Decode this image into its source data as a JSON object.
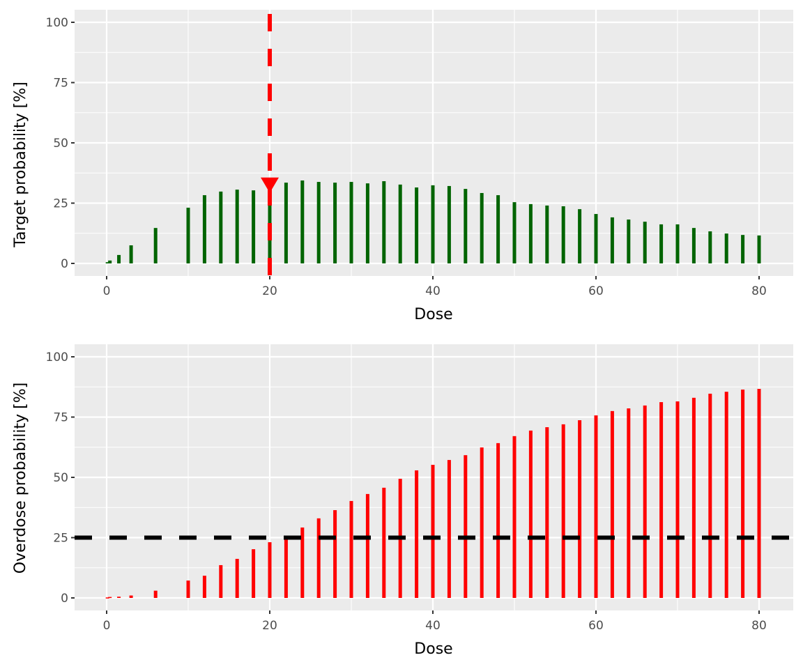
{
  "chart_data": [
    {
      "type": "bar",
      "panel": "top",
      "title": "",
      "xlabel": "Dose",
      "ylabel": "Target probability [%]",
      "xlim": [
        -4,
        84
      ],
      "ylim": [
        -5,
        105
      ],
      "xticks": [
        0,
        20,
        40,
        60,
        80
      ],
      "yticks": [
        0,
        25,
        50,
        75,
        100
      ],
      "grid": true,
      "bar_color": "#006400",
      "x": [
        0.1,
        0.4,
        1.5,
        3,
        6,
        10,
        12,
        14,
        16,
        18,
        20,
        22,
        24,
        26,
        28,
        30,
        32,
        34,
        36,
        38,
        40,
        42,
        44,
        46,
        48,
        50,
        52,
        54,
        56,
        58,
        60,
        62,
        64,
        66,
        68,
        70,
        72,
        74,
        76,
        78,
        80
      ],
      "values": [
        0.5,
        1.2,
        3.5,
        7.5,
        14.7,
        23.1,
        28.3,
        29.8,
        30.6,
        30.3,
        31.0,
        33.5,
        34.4,
        33.8,
        33.5,
        33.8,
        33.2,
        34.1,
        32.7,
        31.5,
        32.4,
        32.1,
        30.9,
        29.2,
        28.3,
        25.4,
        24.6,
        24.0,
        23.7,
        22.5,
        20.5,
        19.1,
        18.2,
        17.3,
        16.2,
        16.2,
        14.7,
        13.3,
        12.4,
        11.8,
        11.6
      ],
      "annotations": [
        {
          "type": "vline",
          "x": 20,
          "style": "dashed",
          "color": "#ff0000"
        },
        {
          "type": "point",
          "shape": "inverted-triangle",
          "x": 20,
          "y": 31.0,
          "color": "#ff0000"
        }
      ]
    },
    {
      "type": "bar",
      "panel": "bottom",
      "title": "",
      "xlabel": "Dose",
      "ylabel": "Overdose probability [%]",
      "xlim": [
        -4,
        84
      ],
      "ylim": [
        -5,
        105
      ],
      "xticks": [
        0,
        20,
        40,
        60,
        80
      ],
      "yticks": [
        0,
        25,
        50,
        75,
        100
      ],
      "grid": true,
      "bar_color": "#ff0000",
      "x": [
        0.1,
        0.4,
        1.5,
        3,
        6,
        10,
        12,
        14,
        16,
        18,
        20,
        22,
        24,
        26,
        28,
        30,
        32,
        34,
        36,
        38,
        40,
        42,
        44,
        46,
        48,
        50,
        52,
        54,
        56,
        58,
        60,
        62,
        64,
        66,
        68,
        70,
        72,
        74,
        76,
        78,
        80
      ],
      "values": [
        0.2,
        0.4,
        0.5,
        1.0,
        3.0,
        7.2,
        9.2,
        13.6,
        16.2,
        20.2,
        23.1,
        25.7,
        29.2,
        33.0,
        36.4,
        40.2,
        43.1,
        45.7,
        49.4,
        52.9,
        55.2,
        57.2,
        59.2,
        62.4,
        64.2,
        67.1,
        69.4,
        70.8,
        72.0,
        73.7,
        75.7,
        77.5,
        78.6,
        79.8,
        81.2,
        81.5,
        83.0,
        84.7,
        85.5,
        86.4,
        86.7
      ],
      "annotations": [
        {
          "type": "hline",
          "y": 25,
          "style": "dashed",
          "color": "#000000"
        }
      ]
    }
  ],
  "panels": {
    "top": {
      "ylabel": "Target probability [%]",
      "xlabel": "Dose"
    },
    "bottom": {
      "ylabel": "Overdose probability [%]",
      "xlabel": "Dose"
    }
  },
  "colors": {
    "panel_bg": "#ebebeb",
    "grid": "#ffffff",
    "target_bar": "#006400",
    "overdose_bar": "#ff0000",
    "next_dose_line": "#ff0000",
    "threshold_line": "#000000",
    "tick_text": "#4d4d4d"
  }
}
